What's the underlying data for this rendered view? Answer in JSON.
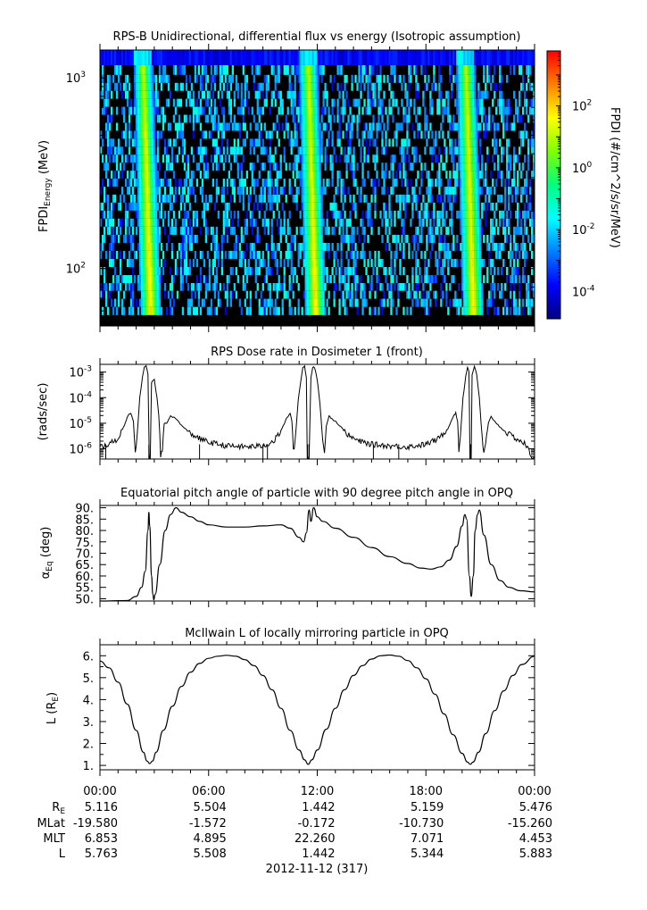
{
  "chart_data": [
    {
      "type": "heatmap",
      "title": "RPS-B  Unidirectional, differential flux vs energy (Isotropic assumption)",
      "ylabel": "FPDI",
      "ylabel_sub": "Energy",
      "ylabel_unit": "(MeV)",
      "yscale": "log",
      "ylim": [
        50,
        1400
      ],
      "yticks": [
        {
          "value": 100,
          "label": "10",
          "exp": "2"
        },
        {
          "value": 1000,
          "label": "10",
          "exp": "3"
        }
      ],
      "energies_mev": [
        60,
        66,
        73,
        80,
        88,
        97,
        107,
        118,
        130,
        143,
        158,
        174,
        192,
        211,
        233,
        256,
        282,
        311,
        342,
        377,
        415,
        457,
        503,
        554,
        610,
        672,
        740,
        815,
        897,
        988,
        1088,
        1250
      ],
      "xlim_hours": [
        0,
        24
      ],
      "flux_peaks_hours": [
        2.8,
        11.9,
        20.6
      ],
      "colorbar": {
        "label": "FPDI (#/cm^2/s/sr/MeV)",
        "scale": "log",
        "range": [
          1.3e-05,
          6000
        ],
        "colors": [
          "#00007f",
          "#0000ff",
          "#007fff",
          "#00ffff",
          "#00ff7f",
          "#7fff00",
          "#ffff00",
          "#ff7f00",
          "#ff0000"
        ],
        "ticks": [
          {
            "value": 0.0001,
            "label": "10",
            "exp": "-4"
          },
          {
            "value": 0.01,
            "label": "10",
            "exp": "-2"
          },
          {
            "value": 1,
            "label": "10",
            "exp": "0"
          },
          {
            "value": 100,
            "label": "10",
            "exp": "2"
          }
        ]
      },
      "background_color": "#000000"
    },
    {
      "type": "line",
      "title": "RPS  Dose rate in Dosimeter 1 (front)",
      "ylabel": "(rads/sec)",
      "yscale": "log",
      "ylim": [
        4e-07,
        0.002
      ],
      "yticks": [
        {
          "value": 1e-06,
          "label": "10",
          "exp": "-6"
        },
        {
          "value": 1e-05,
          "label": "10",
          "exp": "-5"
        },
        {
          "value": 0.0001,
          "label": "10",
          "exp": "-4"
        },
        {
          "value": 0.001,
          "label": "10",
          "exp": "-3"
        }
      ],
      "xlim": [
        0,
        24
      ],
      "points": [
        [
          0,
          1.2e-06
        ],
        [
          0.5,
          1.5e-06
        ],
        [
          1.0,
          2.5e-06
        ],
        [
          1.3,
          7e-06
        ],
        [
          1.55,
          2e-05
        ],
        [
          1.7,
          2.5e-05
        ],
        [
          1.85,
          1.2e-05
        ],
        [
          1.95,
          8e-07
        ],
        [
          2.05,
          3e-06
        ],
        [
          2.2,
          0.0001
        ],
        [
          2.35,
          0.0007
        ],
        [
          2.45,
          0.0015
        ],
        [
          2.55,
          0.0017
        ],
        [
          2.65,
          0.0008
        ],
        [
          2.72,
          5e-07
        ],
        [
          2.78,
          5e-07
        ],
        [
          2.85,
          0.0004
        ],
        [
          3.0,
          0.0005
        ],
        [
          3.15,
          0.0001
        ],
        [
          3.25,
          2e-05
        ],
        [
          3.35,
          6e-07
        ],
        [
          3.45,
          8e-07
        ],
        [
          3.55,
          1e-05
        ],
        [
          3.7,
          1e-05
        ],
        [
          3.9,
          2e-05
        ],
        [
          4.2,
          1.5e-05
        ],
        [
          4.6,
          7e-06
        ],
        [
          5.0,
          4e-06
        ],
        [
          5.5,
          2.5e-06
        ],
        [
          6.0,
          1.8e-06
        ],
        [
          7.0,
          1.3e-06
        ],
        [
          8.0,
          1.2e-06
        ],
        [
          9.0,
          1.3e-06
        ],
        [
          9.6,
          2e-06
        ],
        [
          10.0,
          5e-06
        ],
        [
          10.3,
          1.5e-05
        ],
        [
          10.5,
          2.5e-05
        ],
        [
          10.6,
          1.2e-05
        ],
        [
          10.68,
          8e-07
        ],
        [
          10.78,
          2e-06
        ],
        [
          10.95,
          8e-05
        ],
        [
          11.1,
          0.0005
        ],
        [
          11.2,
          0.0015
        ],
        [
          11.3,
          0.0017
        ],
        [
          11.4,
          0.0006
        ],
        [
          11.45,
          5e-07
        ],
        [
          11.55,
          5e-07
        ],
        [
          11.65,
          0.0006
        ],
        [
          11.75,
          0.0016
        ],
        [
          11.85,
          0.0015
        ],
        [
          12.0,
          0.0005
        ],
        [
          12.15,
          6e-05
        ],
        [
          12.3,
          2e-06
        ],
        [
          12.4,
          6e-07
        ],
        [
          12.5,
          8e-06
        ],
        [
          12.65,
          2e-05
        ],
        [
          12.8,
          1.5e-05
        ],
        [
          13.0,
          1.2e-05
        ],
        [
          13.4,
          6e-06
        ],
        [
          13.8,
          3e-06
        ],
        [
          14.3,
          2e-06
        ],
        [
          15.0,
          1.5e-06
        ],
        [
          16.0,
          1.3e-06
        ],
        [
          17.0,
          1.2e-06
        ],
        [
          18.0,
          1.5e-06
        ],
        [
          18.7,
          2.5e-06
        ],
        [
          19.2,
          6e-06
        ],
        [
          19.5,
          1.8e-05
        ],
        [
          19.65,
          2.5e-05
        ],
        [
          19.75,
          1.2e-05
        ],
        [
          19.82,
          8e-07
        ],
        [
          19.9,
          3e-06
        ],
        [
          20.05,
          0.0001
        ],
        [
          20.2,
          0.0007
        ],
        [
          20.3,
          0.0016
        ],
        [
          20.38,
          0.001
        ],
        [
          20.43,
          4e-07
        ],
        [
          20.5,
          4e-07
        ],
        [
          20.55,
          0.0008
        ],
        [
          20.68,
          0.0017
        ],
        [
          20.8,
          0.0008
        ],
        [
          20.95,
          0.0001
        ],
        [
          21.1,
          3e-06
        ],
        [
          21.2,
          6e-07
        ],
        [
          21.3,
          1.5e-06
        ],
        [
          21.45,
          1e-05
        ],
        [
          21.6,
          1.8e-05
        ],
        [
          21.8,
          1.2e-05
        ],
        [
          22.1,
          7e-06
        ],
        [
          22.5,
          4e-06
        ],
        [
          23.0,
          2.5e-06
        ],
        [
          23.5,
          1.5e-06
        ],
        [
          23.7,
          8e-07
        ],
        [
          23.8,
          5e-07
        ],
        [
          24.0,
          5e-07
        ]
      ],
      "dropouts_hours": [
        0.32,
        2.7,
        5.5,
        9.0,
        9.25,
        11.47,
        11.55,
        15.1,
        16.5,
        20.45,
        20.5
      ]
    },
    {
      "type": "line",
      "title": "Equatorial pitch angle of particle with 90 degree pitch angle in OPQ",
      "ylabel": "α",
      "ylabel_sub": "Eq",
      "ylabel_unit": "(deg)",
      "ylim": [
        49,
        91
      ],
      "yticks": [
        50,
        55,
        60,
        65,
        70,
        75,
        80,
        85,
        90
      ],
      "ytick_labels": [
        "50.",
        "55.",
        "60.",
        "65.",
        "70.",
        "75.",
        "80.",
        "85.",
        "90."
      ],
      "xlim": [
        0,
        24
      ],
      "points": [
        [
          0,
          49
        ],
        [
          1.5,
          49.2
        ],
        [
          2.0,
          51
        ],
        [
          2.3,
          55
        ],
        [
          2.5,
          62
        ],
        [
          2.65,
          80
        ],
        [
          2.7,
          88
        ],
        [
          2.75,
          82
        ],
        [
          2.85,
          60
        ],
        [
          2.92,
          52
        ],
        [
          2.97,
          49.5
        ],
        [
          3.05,
          52
        ],
        [
          3.3,
          65
        ],
        [
          3.6,
          80
        ],
        [
          3.9,
          87
        ],
        [
          4.2,
          90
        ],
        [
          4.5,
          88
        ],
        [
          5.0,
          86
        ],
        [
          5.5,
          84
        ],
        [
          6.0,
          82.5
        ],
        [
          7.0,
          81.5
        ],
        [
          8.0,
          81.5
        ],
        [
          9.0,
          82
        ],
        [
          10.0,
          82.5
        ],
        [
          10.5,
          81
        ],
        [
          11.0,
          77
        ],
        [
          11.25,
          75
        ],
        [
          11.4,
          79
        ],
        [
          11.55,
          89
        ],
        [
          11.65,
          84
        ],
        [
          11.8,
          90
        ],
        [
          12.0,
          86
        ],
        [
          12.3,
          84
        ],
        [
          13.0,
          81
        ],
        [
          14.0,
          77
        ],
        [
          15.0,
          72.5
        ],
        [
          16.0,
          68.5
        ],
        [
          17.0,
          65.5
        ],
        [
          17.7,
          63.5
        ],
        [
          18.3,
          63
        ],
        [
          18.8,
          64
        ],
        [
          19.3,
          67
        ],
        [
          19.7,
          73
        ],
        [
          20.0,
          82
        ],
        [
          20.15,
          87
        ],
        [
          20.25,
          85
        ],
        [
          20.4,
          60
        ],
        [
          20.5,
          51
        ],
        [
          20.62,
          60
        ],
        [
          20.72,
          80
        ],
        [
          20.85,
          87
        ],
        [
          20.95,
          89
        ],
        [
          21.2,
          78
        ],
        [
          21.6,
          65
        ],
        [
          22.1,
          58
        ],
        [
          22.6,
          55
        ],
        [
          23.2,
          53.5
        ],
        [
          24.0,
          53
        ]
      ]
    },
    {
      "type": "line",
      "title": "McIlwain L of locally mirroring particle in OPQ",
      "ylabel": "L (R",
      "ylabel_sub": "E",
      "ylabel_unit": ")",
      "ylim": [
        0.8,
        6.5
      ],
      "yticks": [
        1,
        2,
        3,
        4,
        5,
        6
      ],
      "ytick_labels": [
        "1.",
        "2.",
        "3.",
        "4.",
        "5.",
        "6."
      ],
      "xlim": [
        0,
        24
      ],
      "points": [
        [
          0,
          5.76
        ],
        [
          0.5,
          5.45
        ],
        [
          1.0,
          4.8
        ],
        [
          1.5,
          3.8
        ],
        [
          2.0,
          2.6
        ],
        [
          2.4,
          1.6
        ],
        [
          2.6,
          1.2
        ],
        [
          2.75,
          1.08
        ],
        [
          2.9,
          1.2
        ],
        [
          3.1,
          1.6
        ],
        [
          3.5,
          2.6
        ],
        [
          4.0,
          3.7
        ],
        [
          4.5,
          4.6
        ],
        [
          5.0,
          5.25
        ],
        [
          5.5,
          5.65
        ],
        [
          6.0,
          5.88
        ],
        [
          6.5,
          5.98
        ],
        [
          7.0,
          6.02
        ],
        [
          7.5,
          5.98
        ],
        [
          8.0,
          5.82
        ],
        [
          8.5,
          5.55
        ],
        [
          9.0,
          5.1
        ],
        [
          9.5,
          4.45
        ],
        [
          10.0,
          3.6
        ],
        [
          10.5,
          2.6
        ],
        [
          11.0,
          1.7
        ],
        [
          11.3,
          1.25
        ],
        [
          11.5,
          1.05
        ],
        [
          11.7,
          1.25
        ],
        [
          12.0,
          1.7
        ],
        [
          12.5,
          2.65
        ],
        [
          13.0,
          3.6
        ],
        [
          13.5,
          4.45
        ],
        [
          14.0,
          5.1
        ],
        [
          14.5,
          5.55
        ],
        [
          15.0,
          5.85
        ],
        [
          15.5,
          6.0
        ],
        [
          16.0,
          6.03
        ],
        [
          16.5,
          5.98
        ],
        [
          17.0,
          5.78
        ],
        [
          17.5,
          5.45
        ],
        [
          18.0,
          4.95
        ],
        [
          18.5,
          4.25
        ],
        [
          19.0,
          3.35
        ],
        [
          19.5,
          2.4
        ],
        [
          20.0,
          1.55
        ],
        [
          20.3,
          1.15
        ],
        [
          20.45,
          1.05
        ],
        [
          20.6,
          1.15
        ],
        [
          20.9,
          1.6
        ],
        [
          21.3,
          2.45
        ],
        [
          21.8,
          3.5
        ],
        [
          22.3,
          4.4
        ],
        [
          22.8,
          5.1
        ],
        [
          23.3,
          5.6
        ],
        [
          24.0,
          5.98
        ]
      ]
    }
  ],
  "time_axis": {
    "ticks": [
      0,
      6,
      12,
      18,
      24
    ],
    "tick_labels": [
      "00:00",
      "06:00",
      "12:00",
      "18:00",
      "00:00"
    ],
    "minor_step_hours": 1,
    "date_label": "2012-11-12 (317)"
  },
  "ephemeris": [
    {
      "label": "R",
      "label_sub": "E",
      "values": [
        "5.116",
        "5.504",
        "1.442",
        "5.159",
        "5.476"
      ]
    },
    {
      "label": "MLat",
      "label_sub": "",
      "values": [
        "-19.580",
        "-1.572",
        "-0.172",
        "-10.730",
        "-15.260"
      ]
    },
    {
      "label": "MLT",
      "label_sub": "",
      "values": [
        "6.853",
        "4.895",
        "22.260",
        "7.071",
        "4.453"
      ]
    },
    {
      "label": "L",
      "label_sub": "",
      "values": [
        "5.763",
        "5.508",
        "1.442",
        "5.344",
        "5.883"
      ]
    }
  ]
}
